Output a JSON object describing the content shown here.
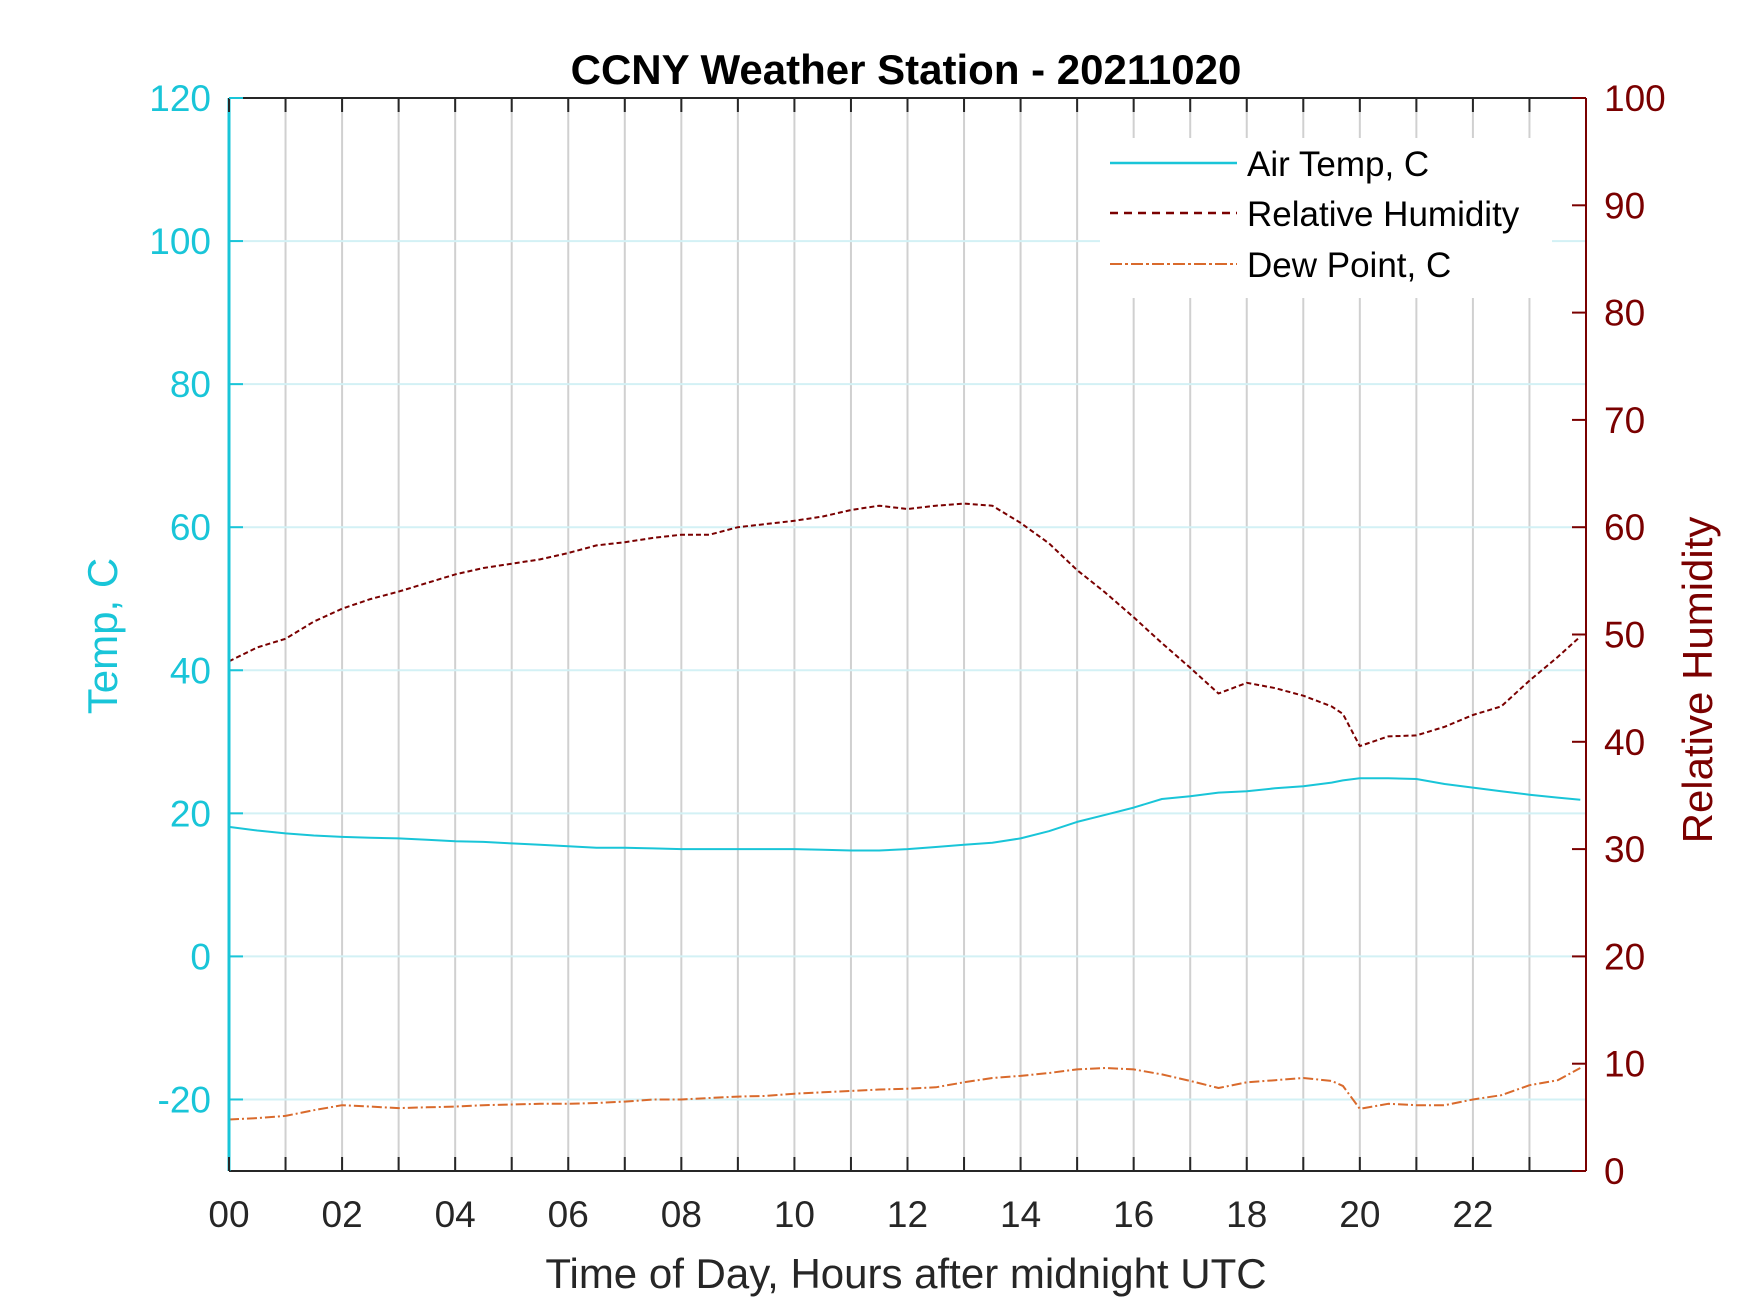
{
  "chart_data": {
    "type": "line",
    "title": "CCNY Weather Station - 20211020",
    "xlabel": "Time of Day, Hours after midnight UTC",
    "ylabel_left": "Temp, C",
    "ylabel_right": "Relative Humidity",
    "xlim": [
      0,
      24
    ],
    "ylim_left": [
      -30,
      120
    ],
    "ylim_right": [
      0,
      100
    ],
    "x_ticks": [
      "00",
      "02",
      "04",
      "06",
      "08",
      "10",
      "12",
      "14",
      "16",
      "18",
      "20",
      "22"
    ],
    "y_ticks_left": [
      "-20",
      "0",
      "20",
      "40",
      "60",
      "80",
      "100",
      "120"
    ],
    "y_ticks_right": [
      "0",
      "10",
      "20",
      "30",
      "40",
      "50",
      "60",
      "70",
      "80",
      "90",
      "100"
    ],
    "grid": true,
    "legend_position": "top-right",
    "colors": {
      "left_axis": "#19c5d8",
      "right_axis": "#7a0000",
      "air_temp": "#19c5d8",
      "humidity": "#7a0000",
      "dew_point": "#d96a2c"
    },
    "x": [
      0,
      0.5,
      1,
      1.5,
      2,
      2.5,
      3,
      3.5,
      4,
      4.5,
      5,
      5.5,
      6,
      6.5,
      7,
      7.5,
      8,
      8.5,
      9,
      9.5,
      10,
      10.5,
      11,
      11.5,
      12,
      12.5,
      13,
      13.5,
      14,
      14.5,
      15,
      15.5,
      16,
      16.5,
      17,
      17.5,
      18,
      18.5,
      19,
      19.5,
      19.7,
      20,
      20.5,
      21,
      21.5,
      22,
      22.5,
      23,
      23.5,
      23.9
    ],
    "series": [
      {
        "name": "Air Temp, C",
        "axis": "left",
        "values": [
          18.1,
          17.6,
          17.2,
          16.9,
          16.7,
          16.6,
          16.5,
          16.3,
          16.1,
          16.0,
          15.8,
          15.6,
          15.4,
          15.2,
          15.2,
          15.1,
          15.0,
          15.0,
          15.0,
          15.0,
          15.0,
          14.9,
          14.8,
          14.8,
          15.0,
          15.3,
          15.6,
          15.9,
          16.5,
          17.5,
          18.8,
          19.8,
          20.8,
          22.0,
          22.4,
          22.9,
          23.1,
          23.5,
          23.8,
          24.3,
          24.6,
          24.9,
          24.9,
          24.8,
          24.1,
          23.6,
          23.1,
          22.6,
          22.2,
          21.9
        ]
      },
      {
        "name": "Relative Humidity",
        "axis": "right",
        "values": [
          47.5,
          48.8,
          49.6,
          51.2,
          52.4,
          53.3,
          54.0,
          54.8,
          55.6,
          56.2,
          56.6,
          57.0,
          57.6,
          58.3,
          58.6,
          59.0,
          59.3,
          59.3,
          60.0,
          60.3,
          60.6,
          61.0,
          61.6,
          62.0,
          61.7,
          62.0,
          62.2,
          62.0,
          60.4,
          58.5,
          56.0,
          53.9,
          51.6,
          49.2,
          46.9,
          44.5,
          45.5,
          45.0,
          44.3,
          43.3,
          42.6,
          39.6,
          40.5,
          40.6,
          41.4,
          42.5,
          43.3,
          45.7,
          47.9,
          49.8
        ]
      },
      {
        "name": "Dew Point, C",
        "axis": "left",
        "values": [
          -22.8,
          -22.6,
          -22.3,
          -21.5,
          -20.8,
          -21.0,
          -21.2,
          -21.1,
          -21.0,
          -20.8,
          -20.7,
          -20.6,
          -20.6,
          -20.5,
          -20.3,
          -20.0,
          -20.0,
          -19.8,
          -19.6,
          -19.5,
          -19.2,
          -19.0,
          -18.8,
          -18.6,
          -18.5,
          -18.3,
          -17.6,
          -17.0,
          -16.7,
          -16.3,
          -15.8,
          -15.6,
          -15.8,
          -16.5,
          -17.4,
          -18.4,
          -17.6,
          -17.3,
          -17.0,
          -17.4,
          -18.1,
          -21.3,
          -20.6,
          -20.8,
          -20.8,
          -20.0,
          -19.4,
          -18.0,
          -17.3,
          -15.6
        ]
      }
    ]
  }
}
